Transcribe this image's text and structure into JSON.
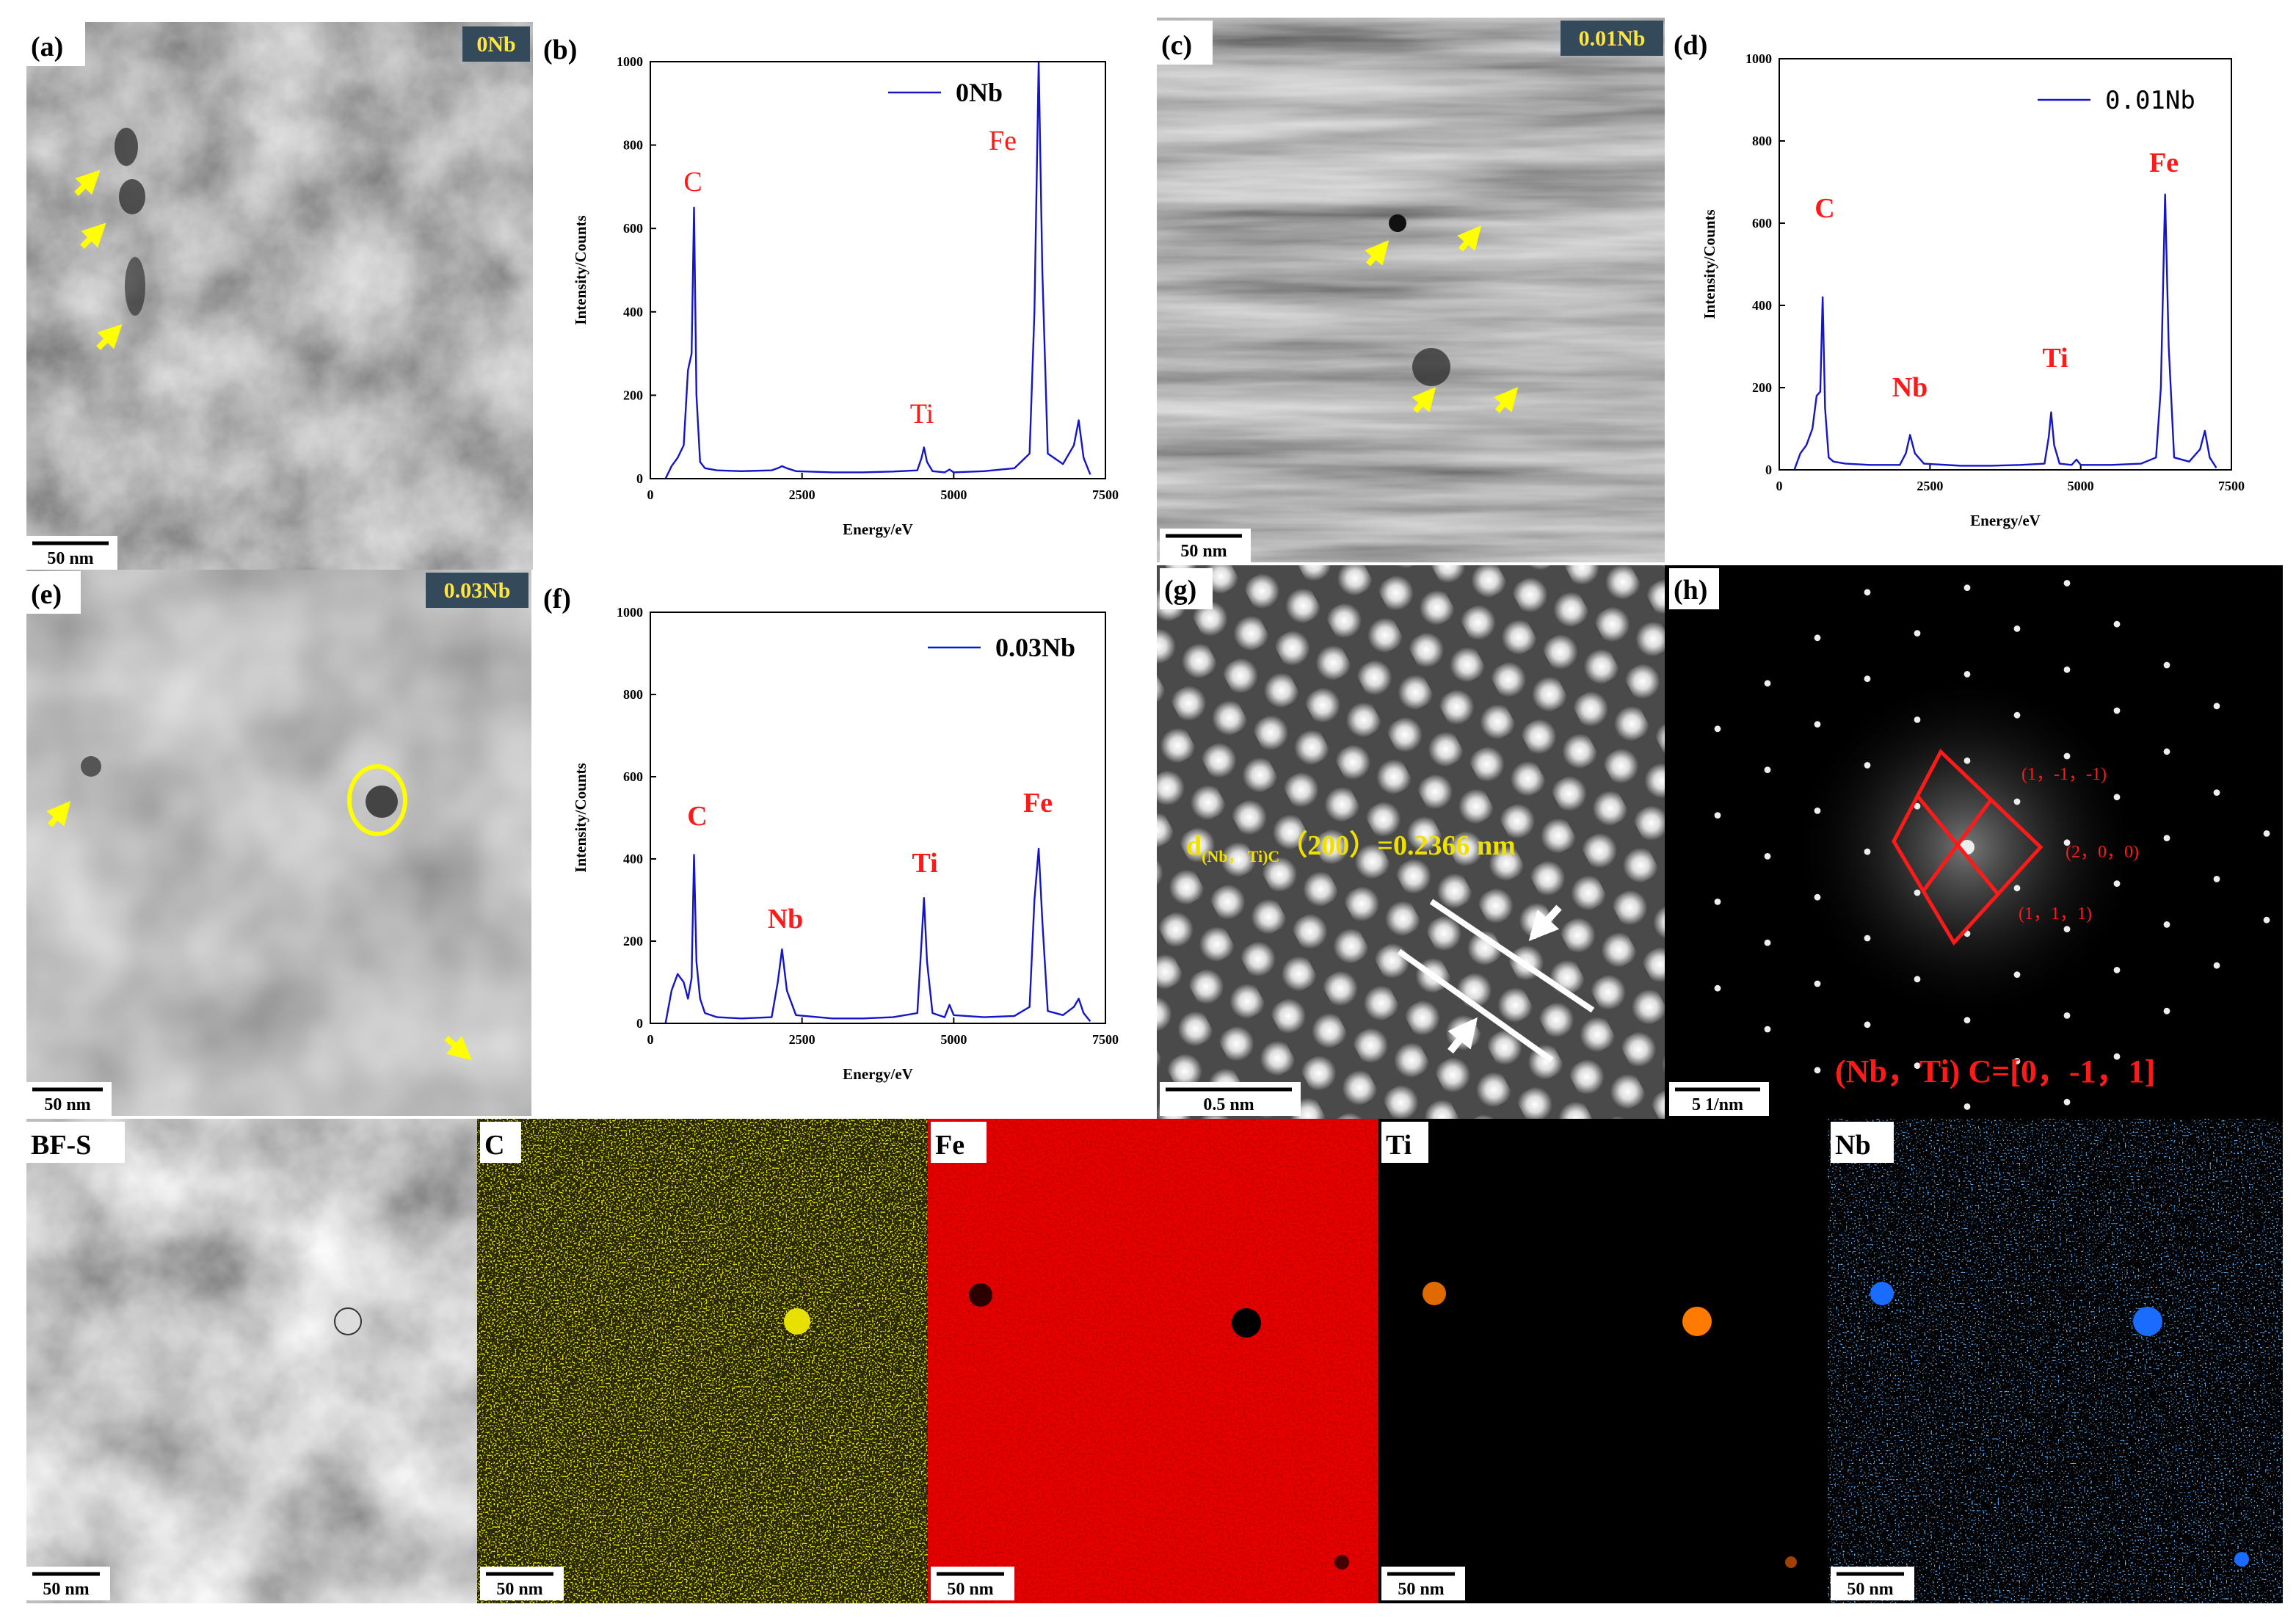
{
  "chart_data": [
    {
      "type": "line",
      "panel_label": "(b)",
      "xlabel": "Energy/eV",
      "ylabel": "Intensity/Counts",
      "x": [
        250,
        350,
        450,
        550,
        620,
        680,
        720,
        760,
        820,
        900,
        1100,
        1500,
        2000,
        2100,
        2170,
        2250,
        2400,
        3000,
        3500,
        4000,
        4400,
        4470,
        4510,
        4560,
        4650,
        4850,
        4930,
        5000,
        5500,
        6000,
        6250,
        6330,
        6400,
        6460,
        6550,
        6800,
        6980,
        7060,
        7140,
        7250
      ],
      "series": [
        {
          "name": "0Nb",
          "color": "#1414c8",
          "values": [
            0,
            30,
            50,
            80,
            260,
            300,
            650,
            200,
            40,
            25,
            20,
            18,
            20,
            25,
            30,
            25,
            18,
            15,
            15,
            17,
            20,
            50,
            75,
            40,
            18,
            15,
            22,
            15,
            18,
            25,
            60,
            400,
            1000,
            500,
            60,
            35,
            80,
            140,
            50,
            10
          ]
        }
      ],
      "annotations": [
        "C",
        "Ti",
        "Fe"
      ],
      "xlim": [
        0,
        7500
      ],
      "xticks": [
        0,
        2500,
        5000,
        7500
      ],
      "ylim": [
        0,
        1000
      ],
      "yticks": [
        0,
        200,
        400,
        600,
        800,
        1000
      ]
    },
    {
      "type": "line",
      "panel_label": "(d)",
      "xlabel": "Energy/eV",
      "ylabel": "Intensity/Counts",
      "x": [
        250,
        350,
        450,
        550,
        620,
        680,
        720,
        760,
        820,
        900,
        1100,
        1500,
        2000,
        2100,
        2170,
        2250,
        2400,
        3000,
        3500,
        4000,
        4400,
        4470,
        4510,
        4560,
        4650,
        4850,
        4930,
        5000,
        5500,
        6000,
        6250,
        6330,
        6400,
        6460,
        6550,
        6800,
        6980,
        7060,
        7140,
        7250
      ],
      "series": [
        {
          "name": "0.01Nb",
          "color": "#1414c8",
          "values": [
            0,
            40,
            60,
            100,
            180,
            190,
            420,
            150,
            30,
            20,
            15,
            12,
            12,
            40,
            85,
            40,
            15,
            10,
            10,
            12,
            15,
            80,
            140,
            60,
            15,
            12,
            25,
            12,
            12,
            15,
            30,
            200,
            670,
            300,
            30,
            20,
            50,
            95,
            30,
            5
          ]
        }
      ],
      "annotations": [
        "C",
        "Nb",
        "Ti",
        "Fe"
      ],
      "xlim": [
        0,
        7500
      ],
      "xticks": [
        0,
        2500,
        5000,
        7500
      ],
      "ylim": [
        0,
        1000
      ],
      "yticks": [
        0,
        200,
        400,
        600,
        800,
        1000
      ]
    },
    {
      "type": "line",
      "panel_label": "(f)",
      "xlabel": "Energy/eV",
      "ylabel": "Intensity/Counts",
      "x": [
        250,
        350,
        450,
        550,
        620,
        680,
        720,
        760,
        820,
        900,
        1100,
        1500,
        2000,
        2100,
        2170,
        2250,
        2400,
        3000,
        3500,
        4000,
        4400,
        4470,
        4510,
        4560,
        4650,
        4850,
        4930,
        5000,
        5500,
        6000,
        6250,
        6330,
        6400,
        6460,
        6550,
        6800,
        6980,
        7060,
        7140,
        7250
      ],
      "series": [
        {
          "name": "0.03Nb",
          "color": "#1414c8",
          "values": [
            0,
            80,
            120,
            100,
            60,
            110,
            410,
            150,
            60,
            25,
            15,
            12,
            15,
            100,
            180,
            80,
            20,
            12,
            12,
            15,
            25,
            200,
            305,
            150,
            25,
            15,
            45,
            20,
            15,
            18,
            40,
            300,
            425,
            250,
            30,
            20,
            40,
            60,
            25,
            5
          ]
        }
      ],
      "annotations": [
        "C",
        "Nb",
        "Ti",
        "Fe"
      ],
      "xlim": [
        0,
        7500
      ],
      "xticks": [
        0,
        2500,
        5000,
        7500
      ],
      "ylim": [
        0,
        1000
      ],
      "yticks": [
        0,
        200,
        400,
        600,
        800,
        1000
      ]
    }
  ],
  "panels": [
    {
      "label": "(a)",
      "tag": "0Nb",
      "scale_bar": "50 nm"
    },
    {
      "label": "(c)",
      "tag": "0.01Nb",
      "scale_bar": "50 nm"
    },
    {
      "label": "(e)",
      "tag": "0.03Nb",
      "scale_bar": "50 nm"
    },
    {
      "label": "(g)",
      "scale_bar": "0.5 nm",
      "annotation": {
        "symbol": "d",
        "subscript": "(Nb， Ti)C",
        "text": "（200）=0.2366 nm"
      }
    },
    {
      "label": "(h)",
      "scale_bar": "5 1/nm",
      "indices": [
        "(1，-1，-1)",
        "(2，0，0)",
        "(1，1，1)"
      ],
      "zone_axis": "(Nb，Ti) C=[0，-1，1]"
    }
  ],
  "maps": [
    {
      "label": "BF-S",
      "scale_bar": "50 nm"
    },
    {
      "label": "C",
      "scale_bar": "50 nm"
    },
    {
      "label": "Fe",
      "scale_bar": "50 nm"
    },
    {
      "label": "Ti",
      "scale_bar": "50 nm"
    },
    {
      "label": "Nb",
      "scale_bar": "50 nm"
    }
  ]
}
